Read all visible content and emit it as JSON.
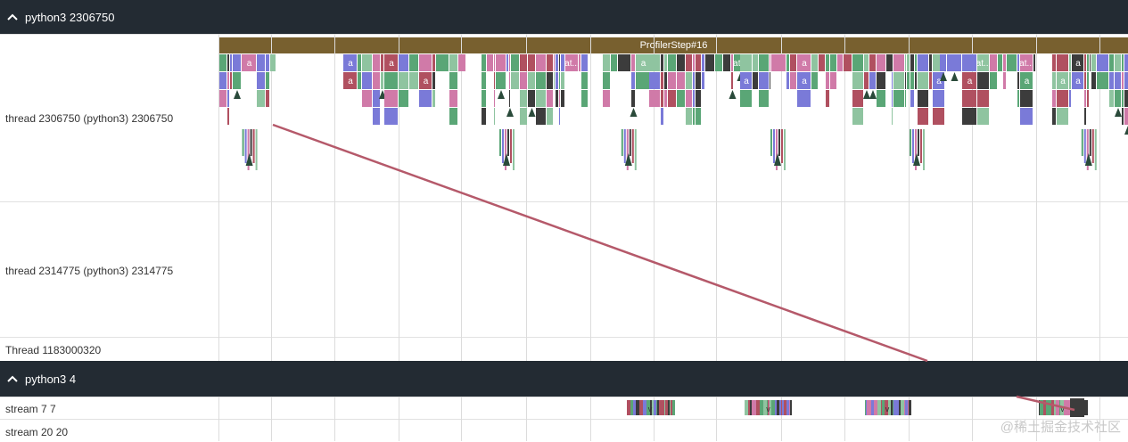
{
  "processes": [
    {
      "name": "python3 2306750",
      "threads": [
        "thread 2306750 (python3) 2306750",
        "thread 2314775 (python3) 2314775",
        "Thread 1183000320"
      ]
    },
    {
      "name": "python3 4",
      "threads": [
        "stream 7 7",
        "stream 20 20"
      ]
    }
  ],
  "profiler_step_label": "ProfilerStep#16",
  "slice_labels": [
    "a",
    "at...",
    "v"
  ],
  "watermark": "@稀土掘金技术社区",
  "colors": {
    "header_bg": "#232b33",
    "profiler_step": "#78602f",
    "flow_arrow": "#b5596a",
    "slice_palette": [
      "#5aa676",
      "#7a7ad8",
      "#d07aa8",
      "#3c3c3c",
      "#b05060",
      "#8fc4a0"
    ]
  }
}
